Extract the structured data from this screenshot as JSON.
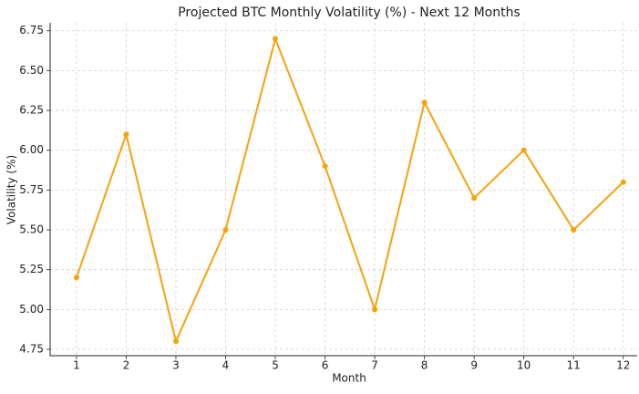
{
  "chart_data": {
    "type": "line",
    "title": "Projected BTC Monthly Volatility (%) - Next 12 Months",
    "x_label": "Month",
    "y_label": "Volatility (%)",
    "x": [
      1,
      2,
      3,
      4,
      5,
      6,
      7,
      8,
      9,
      10,
      11,
      12
    ],
    "series": [
      {
        "name": "Volatility",
        "color": "#f5a30a",
        "values": [
          5.2,
          6.1,
          4.8,
          5.5,
          6.7,
          5.9,
          5.0,
          6.3,
          5.7,
          6.0,
          5.5,
          5.8
        ]
      }
    ],
    "xlim": [
      0.47,
      12.28
    ],
    "ylim": [
      4.71,
      6.8
    ],
    "xticks": [
      1,
      2,
      3,
      4,
      5,
      6,
      7,
      8,
      9,
      10,
      11,
      12
    ],
    "yticks": [
      4.75,
      {
        "value": 5,
        "label": "5.00"
      },
      5.25,
      {
        "value": 5.5,
        "label": "5.50"
      },
      5.75,
      {
        "value": 6,
        "label": "6.00"
      },
      6.25,
      {
        "value": 6.5,
        "label": "6.50"
      },
      6.75
    ],
    "grid": true
  }
}
